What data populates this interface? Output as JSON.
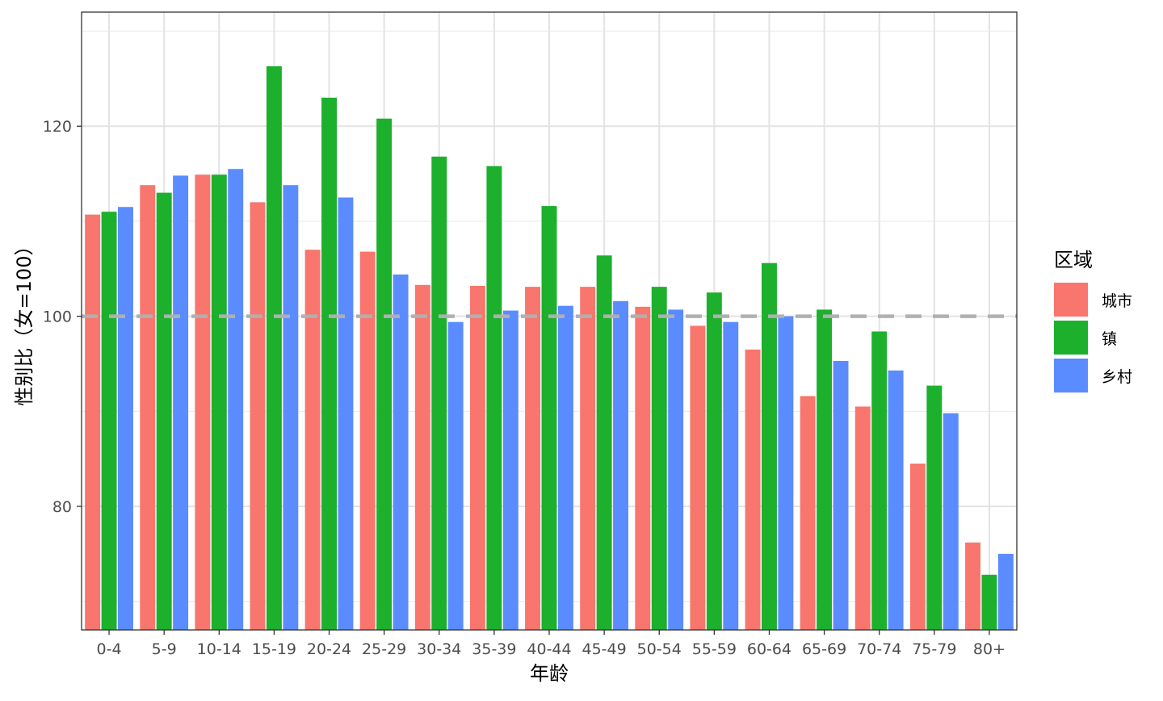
{
  "chart_data": {
    "type": "bar",
    "title": "",
    "xlabel": "年龄",
    "ylabel": "性别比（女=100）",
    "ylim": [
      67,
      132
    ],
    "yticks": [
      80,
      100,
      120
    ],
    "grid": true,
    "reference_line": {
      "y": 100,
      "style": "dashed",
      "color": "#b0b0b0"
    },
    "legend": {
      "title": "区域",
      "position": "right"
    },
    "categories": [
      "0-4",
      "5-9",
      "10-14",
      "15-19",
      "20-24",
      "25-29",
      "30-34",
      "35-39",
      "40-44",
      "45-49",
      "50-54",
      "55-59",
      "60-64",
      "65-69",
      "70-74",
      "75-79",
      "80+"
    ],
    "series": [
      {
        "name": "城市",
        "color": "#F8766D",
        "values": [
          110.7,
          113.8,
          114.9,
          112.0,
          107.0,
          106.8,
          103.3,
          103.2,
          103.1,
          103.1,
          101.0,
          99.0,
          96.5,
          91.6,
          90.5,
          84.5,
          76.2
        ]
      },
      {
        "name": "镇",
        "color": "#1CB02D",
        "values": [
          111.0,
          113.0,
          114.9,
          126.3,
          123.0,
          120.8,
          116.8,
          115.8,
          111.6,
          106.4,
          103.1,
          102.5,
          105.6,
          100.7,
          98.4,
          92.7,
          72.8
        ]
      },
      {
        "name": "乡村",
        "color": "#5B8CFF",
        "values": [
          111.5,
          114.8,
          115.5,
          113.8,
          112.5,
          104.4,
          99.4,
          100.6,
          101.1,
          101.6,
          100.7,
          99.4,
          100.0,
          95.3,
          94.3,
          89.8,
          75.0
        ]
      }
    ]
  }
}
